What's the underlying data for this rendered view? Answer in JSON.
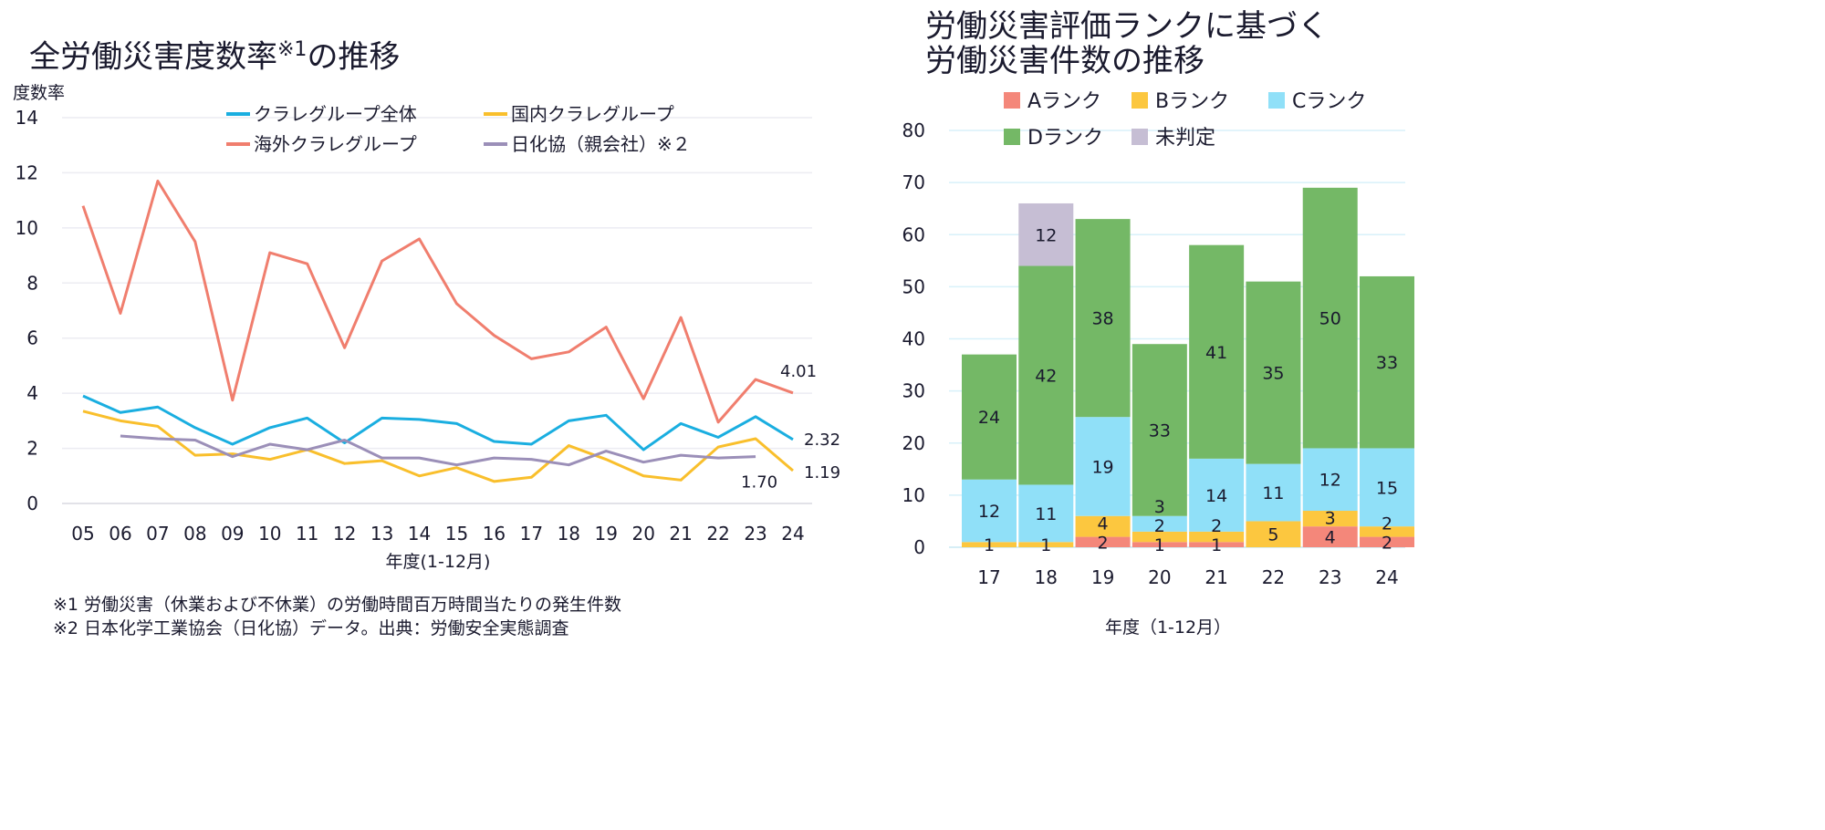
{
  "chart_data": [
    {
      "type": "line",
      "title": "全労働災害度数率",
      "title_sup": "※1",
      "title_suffix": "の推移",
      "ylabel": "度数率",
      "xlabel": "年度(1-12月)",
      "ylim": [
        0,
        14
      ],
      "yticks": [
        0,
        2,
        4,
        6,
        8,
        10,
        12,
        14
      ],
      "x": [
        "05",
        "06",
        "07",
        "08",
        "09",
        "10",
        "11",
        "12",
        "13",
        "14",
        "15",
        "16",
        "17",
        "18",
        "19",
        "20",
        "21",
        "22",
        "23",
        "24"
      ],
      "grid": true,
      "legend_position": "top",
      "series": [
        {
          "name": "クラレグループ全体",
          "color": "#1aaee0",
          "values": [
            3.9,
            3.3,
            3.5,
            2.75,
            2.15,
            2.75,
            3.1,
            2.2,
            3.1,
            3.05,
            2.9,
            2.25,
            2.15,
            3.0,
            3.2,
            1.95,
            2.9,
            2.4,
            3.15,
            2.32
          ],
          "end_label": "2.32"
        },
        {
          "name": "国内クラレグループ",
          "color": "#f9bf2c",
          "values": [
            3.35,
            3.0,
            2.8,
            1.75,
            1.8,
            1.6,
            1.95,
            1.45,
            1.55,
            1.0,
            1.3,
            0.8,
            0.95,
            2.1,
            1.6,
            1.0,
            0.85,
            2.05,
            2.35,
            1.19
          ],
          "end_label": "1.19"
        },
        {
          "name": "海外クラレグループ",
          "color": "#f07e6e",
          "values": [
            10.8,
            6.9,
            11.7,
            9.5,
            3.75,
            9.1,
            8.7,
            5.65,
            8.8,
            9.6,
            7.25,
            6.1,
            5.25,
            5.5,
            6.4,
            3.8,
            6.75,
            2.95,
            4.5,
            4.01
          ],
          "end_label": "4.01"
        },
        {
          "name": "日化協（親会社）※２",
          "color": "#9b8fb8",
          "values": [
            null,
            2.45,
            2.35,
            2.3,
            1.7,
            2.15,
            1.95,
            2.3,
            1.65,
            1.65,
            1.4,
            1.65,
            1.6,
            1.4,
            1.9,
            1.5,
            1.75,
            1.65,
            1.7,
            null
          ],
          "end_label": "1.70"
        }
      ],
      "notes": [
        "※1 労働災害（休業および不休業）の労働時間百万時間当たりの発生件数",
        "※2 日本化学工業協会（日化協）データ。出典：労働安全実態調査"
      ]
    },
    {
      "type": "bar",
      "stacked": true,
      "title_lines": [
        "労働災害評価ランクに基づく",
        "労働災害件数の推移"
      ],
      "xlabel": "年度（1-12月）",
      "ylim": [
        0,
        80
      ],
      "yticks": [
        0,
        10,
        20,
        30,
        40,
        50,
        60,
        70,
        80
      ],
      "categories": [
        "17",
        "18",
        "19",
        "20",
        "21",
        "22",
        "23",
        "24"
      ],
      "grid": true,
      "legend_position": "top",
      "series": [
        {
          "name": "Aランク",
          "color": "#f4877a",
          "values": [
            0,
            0,
            2,
            1,
            1,
            0,
            4,
            2
          ]
        },
        {
          "name": "Bランク",
          "color": "#fcc73f",
          "values": [
            1,
            1,
            4,
            2,
            2,
            5,
            3,
            2
          ]
        },
        {
          "name": "Cランク",
          "color": "#90e0f8",
          "values": [
            12,
            11,
            19,
            3,
            14,
            11,
            12,
            15
          ]
        },
        {
          "name": "Dランク",
          "color": "#74b866",
          "values": [
            24,
            42,
            38,
            33,
            41,
            35,
            50,
            33
          ]
        },
        {
          "name": "未判定",
          "color": "#c6bed4",
          "values": [
            0,
            12,
            0,
            0,
            0,
            0,
            0,
            0
          ]
        }
      ]
    }
  ]
}
